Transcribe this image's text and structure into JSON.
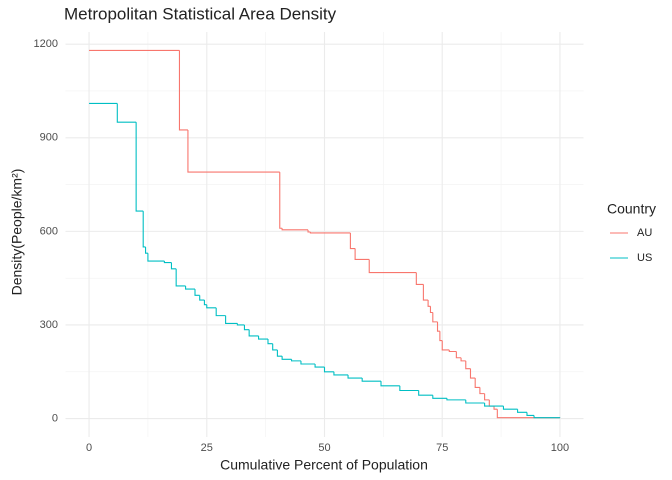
{
  "chart_data": {
    "type": "step",
    "title": "Metropolitan Statistical Area Density",
    "x_label": "Cumulative Percent of Population",
    "y_label": "Density(People/km²)",
    "xlim": [
      -5,
      105
    ],
    "ylim": [
      -59,
      1239
    ],
    "xticks": [
      0,
      25,
      50,
      75,
      100
    ],
    "yticks": [
      0,
      300,
      600,
      900,
      1200
    ],
    "grid": true,
    "legend_title": "Country",
    "legend_position": "right",
    "series": [
      {
        "name": "AU",
        "color": "#F8766D",
        "x": [
          0,
          19.2,
          21,
          40.5,
          41,
          46.5,
          47,
          55.5,
          56.5,
          59.5,
          69.5,
          71,
          72,
          72.5,
          73,
          74,
          74.5,
          75,
          76.5,
          78,
          79,
          80,
          81,
          82,
          83,
          84,
          85,
          86,
          86.7,
          100
        ],
        "values": [
          1180,
          925,
          790,
          610,
          605,
          598,
          595,
          545,
          510,
          468,
          430,
          380,
          360,
          340,
          310,
          280,
          250,
          220,
          215,
          195,
          185,
          160,
          130,
          100,
          80,
          60,
          40,
          30,
          3,
          2
        ]
      },
      {
        "name": "US",
        "color": "#00BFC4",
        "x": [
          0,
          6,
          10,
          11.5,
          12,
          12.5,
          16,
          17.5,
          18.5,
          20.5,
          22.5,
          23.5,
          24.5,
          25,
          27,
          29,
          31.5,
          33,
          34,
          36,
          38,
          39,
          40,
          41,
          43,
          45,
          48,
          50,
          52,
          55,
          58,
          62,
          66,
          70,
          73,
          76,
          80,
          84,
          88,
          91,
          93,
          94.5,
          100
        ],
        "values": [
          1010,
          950,
          665,
          550,
          530,
          505,
          500,
          480,
          425,
          415,
          395,
          380,
          365,
          355,
          330,
          305,
          300,
          285,
          265,
          255,
          240,
          220,
          200,
          190,
          185,
          175,
          165,
          150,
          140,
          130,
          120,
          105,
          90,
          75,
          65,
          60,
          50,
          40,
          30,
          20,
          10,
          3,
          2
        ]
      }
    ]
  }
}
